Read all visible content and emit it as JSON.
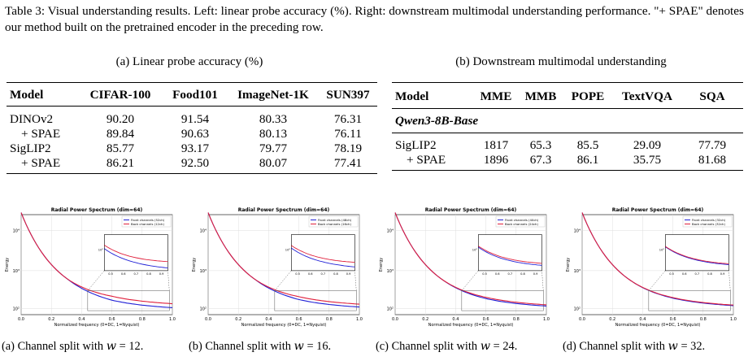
{
  "caption": "Table 3: Visual understanding results. Left: linear probe accuracy (%). Right: downstream multimodal understanding performance. \"+ SPAE\" denotes our method built on the pretrained encoder in the preceding row.",
  "table_a": {
    "subcaption": "(a) Linear probe accuracy (%)",
    "headers": [
      "Model",
      "CIFAR-100",
      "Food101",
      "ImageNet-1K",
      "SUN397"
    ],
    "rows": [
      [
        "DINOv2",
        "90.20",
        "91.54",
        "80.33",
        "76.31"
      ],
      [
        "+ SPAE",
        "89.84",
        "90.63",
        "80.13",
        "76.11"
      ],
      [
        "SigLIP2",
        "85.77",
        "93.17",
        "79.77",
        "78.19"
      ],
      [
        "+ SPAE",
        "86.21",
        "92.50",
        "80.07",
        "77.41"
      ]
    ]
  },
  "table_b": {
    "subcaption": "(b) Downstream multimodal understanding",
    "headers": [
      "Model",
      "MME",
      "MMB",
      "POPE",
      "TextVQA",
      "SQA"
    ],
    "section": "Qwen3-8B-Base",
    "rows": [
      [
        "SigLIP2",
        "1817",
        "65.3",
        "85.5",
        "29.09",
        "77.79"
      ],
      [
        "+ SPAE",
        "1896",
        "67.3",
        "86.1",
        "35.75",
        "81.68"
      ]
    ]
  },
  "figure": {
    "panels": [
      {
        "title": "Radial Power Spectrum (dim=64)",
        "legend": [
          "Front channels (52ch)",
          "Back channels (12ch)"
        ],
        "caption_prefix": "(a) Channel split with ",
        "w": "w",
        "caption_suffix": " = 12.",
        "gap": 0.22
      },
      {
        "title": "Radial Power Spectrum (dim=64)",
        "legend": [
          "Front channels (48ch)",
          "Back channels (16ch)"
        ],
        "caption_prefix": "(b) Channel split with ",
        "w": "w",
        "caption_suffix": " = 16.",
        "gap": 0.16
      },
      {
        "title": "Radial Power Spectrum (dim=64)",
        "legend": [
          "Front channels (40ch)",
          "Back channels (24ch)"
        ],
        "caption_prefix": "(c) Channel split with ",
        "w": "w",
        "caption_suffix": " = 24.",
        "gap": 0.07
      },
      {
        "title": "Radial Power Spectrum (dim=64)",
        "legend": [
          "Front channels (32ch)",
          "Back channels (32ch)"
        ],
        "caption_prefix": "(d) Channel split with ",
        "w": "w",
        "caption_suffix": " = 32.",
        "gap": 0.03
      }
    ],
    "xlabel": "Normalized frequency (0=DC, 1=Nyquist)",
    "ylabel": "Energy",
    "xticks": [
      "0.0",
      "0.2",
      "0.4",
      "0.6",
      "0.8",
      "1.0"
    ],
    "yticks": [
      "10²",
      "10³",
      "10⁴"
    ],
    "inset_xticks": [
      "0.5",
      "0.6",
      "0.7",
      "0.8",
      "0.9"
    ],
    "inset_ytick": "10²",
    "colors": {
      "front": "#1f1fd6",
      "back": "#e0203c",
      "grid": "#dddddd"
    }
  }
}
